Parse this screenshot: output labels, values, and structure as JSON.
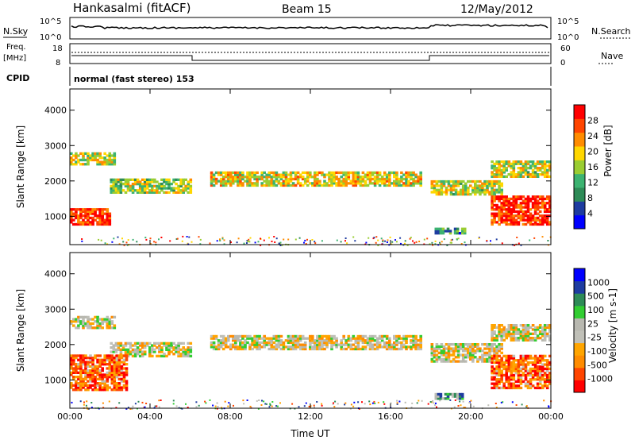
{
  "header": {
    "station": "Hankasalmi (fitACF)",
    "beam": "Beam 15",
    "date": "12/May/2012"
  },
  "sky_panel": {
    "left_label": "N.Sky",
    "right_label": "N.Search",
    "left_ticks": [
      "10^5",
      "10^0"
    ],
    "right_ticks": [
      "10^5",
      "10^0"
    ]
  },
  "freq_panel": {
    "left_label_1": "Freq.",
    "left_label_2": "[MHz]",
    "left_ticks": [
      "18",
      "8"
    ],
    "right_label": "Nave",
    "right_ticks": [
      "60",
      "0"
    ]
  },
  "cpid": {
    "label": "CPID",
    "text": "normal (fast stereo) 153"
  },
  "colors": {
    "power_scale": [
      "#0000ff",
      "#1e3ca0",
      "#2e8b57",
      "#3cb371",
      "#9acd32",
      "#ffd700",
      "#ff8c00",
      "#ff4500",
      "#ff0000"
    ],
    "velocity_scale": [
      "#ff0000",
      "#ff4500",
      "#ff8c00",
      "#ffa500",
      "#c0c0b8",
      "#b8b8b0",
      "#32cd32",
      "#2e8b57",
      "#1e3ca0",
      "#0000ff"
    ]
  },
  "chart_data": [
    {
      "type": "heatmap",
      "name": "power",
      "ylabel": "Slant Range [km]",
      "ylim": [
        200,
        4600
      ],
      "yticks": [
        "1000",
        "2000",
        "3000",
        "4000"
      ],
      "xlim_hours": [
        0,
        24
      ],
      "xticks": [
        "00:00",
        "04:00",
        "08:00",
        "12:00",
        "16:00",
        "20:00",
        "00:00"
      ],
      "colorbar_label": "Power [dB]",
      "colorbar_ticks": [
        "4",
        "8",
        "12",
        "16",
        "20",
        "24",
        "28"
      ],
      "bands": [
        {
          "t0": 0.0,
          "t1": 2.2,
          "r0": 2450,
          "r1": 2800,
          "level": 0.55
        },
        {
          "t0": 2.0,
          "t1": 6.0,
          "r0": 1650,
          "r1": 2050,
          "level": 0.5
        },
        {
          "t0": 0.0,
          "t1": 2.0,
          "r0": 750,
          "r1": 1200,
          "level": 0.9
        },
        {
          "t0": 7.0,
          "t1": 17.5,
          "r0": 1850,
          "r1": 2250,
          "level": 0.6
        },
        {
          "t0": 18.0,
          "t1": 21.5,
          "r0": 1600,
          "r1": 2000,
          "level": 0.55
        },
        {
          "t0": 21.0,
          "t1": 24.0,
          "r0": 2100,
          "r1": 2550,
          "level": 0.55
        },
        {
          "t0": 21.0,
          "t1": 24.0,
          "r0": 750,
          "r1": 1550,
          "level": 0.9
        },
        {
          "t0": 18.2,
          "t1": 19.7,
          "r0": 500,
          "r1": 650,
          "level": 0.3
        }
      ]
    },
    {
      "type": "heatmap",
      "name": "velocity",
      "ylabel": "Slant Range [km]",
      "ylim": [
        200,
        4600
      ],
      "yticks": [
        "1000",
        "2000",
        "3000",
        "4000"
      ],
      "xlim_hours": [
        0,
        24
      ],
      "xticks": [
        "00:00",
        "04:00",
        "08:00",
        "12:00",
        "16:00",
        "20:00",
        "00:00"
      ],
      "xlabel": "Time UT",
      "colorbar_label": "Velocity [m s-1]",
      "colorbar_ticks": [
        "-1000",
        "-500",
        "-100",
        "-25",
        "25",
        "100",
        "500",
        "1000"
      ],
      "bands": [
        {
          "t0": 0.0,
          "t1": 2.2,
          "r0": 2450,
          "r1": 2800,
          "level": 0.45
        },
        {
          "t0": 2.0,
          "t1": 6.0,
          "r0": 1650,
          "r1": 2050,
          "level": 0.45
        },
        {
          "t0": 0.0,
          "t1": 2.8,
          "r0": 700,
          "r1": 1700,
          "level": 0.2
        },
        {
          "t0": 7.0,
          "t1": 17.5,
          "r0": 1850,
          "r1": 2250,
          "level": 0.45
        },
        {
          "t0": 18.0,
          "t1": 21.5,
          "r0": 1500,
          "r1": 2000,
          "level": 0.45
        },
        {
          "t0": 21.0,
          "t1": 24.0,
          "r0": 2100,
          "r1": 2550,
          "level": 0.45
        },
        {
          "t0": 21.0,
          "t1": 24.0,
          "r0": 750,
          "r1": 1700,
          "level": 0.2
        },
        {
          "t0": 18.2,
          "t1": 19.6,
          "r0": 450,
          "r1": 580,
          "level": 0.68
        }
      ]
    }
  ]
}
